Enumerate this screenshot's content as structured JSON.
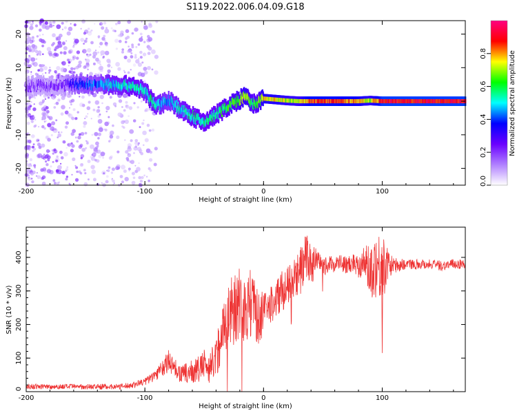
{
  "title": "S119.2022.006.04.09.G18",
  "chart_data": [
    {
      "type": "heatmap",
      "xlabel": "Height of straight line (km)",
      "ylabel": "Frequency (Hz)",
      "xlim": [
        -200,
        170
      ],
      "ylim": [
        -25,
        24
      ],
      "xticks": [
        -200,
        -100,
        0,
        100
      ],
      "yticks": [
        -20,
        -10,
        0,
        10,
        20
      ],
      "colorbar": {
        "label": "Normalized spectral amplitude",
        "range": [
          0,
          1
        ],
        "ticks": [
          0.0,
          0.2,
          0.4,
          0.6,
          0.8
        ],
        "colormap": [
          "#ffffff",
          "#b080ff",
          "#6a00ff",
          "#0000ff",
          "#00ffff",
          "#00ff00",
          "#ffff00",
          "#ff0000",
          "#ff0080"
        ]
      },
      "ridge": [
        {
          "x": -200,
          "y": 4.5,
          "amp": 0.2
        },
        {
          "x": -190,
          "y": 4.7,
          "amp": 0.2
        },
        {
          "x": -180,
          "y": 4.5,
          "amp": 0.2
        },
        {
          "x": -170,
          "y": 4.6,
          "amp": 0.2
        },
        {
          "x": -160,
          "y": 5.2,
          "amp": 0.35
        },
        {
          "x": -150,
          "y": 5.0,
          "amp": 0.4
        },
        {
          "x": -140,
          "y": 5.0,
          "amp": 0.4
        },
        {
          "x": -130,
          "y": 5.0,
          "amp": 0.5
        },
        {
          "x": -120,
          "y": 4.8,
          "amp": 0.5
        },
        {
          "x": -110,
          "y": 4.5,
          "amp": 0.55
        },
        {
          "x": -100,
          "y": 3.0,
          "amp": 0.5
        },
        {
          "x": -95,
          "y": 0.5,
          "amp": 0.55
        },
        {
          "x": -90,
          "y": -1.5,
          "amp": 0.5
        },
        {
          "x": -80,
          "y": 0.5,
          "amp": 0.45
        },
        {
          "x": -75,
          "y": -1.0,
          "amp": 0.5
        },
        {
          "x": -70,
          "y": -2.5,
          "amp": 0.5
        },
        {
          "x": -60,
          "y": -4.5,
          "amp": 0.55
        },
        {
          "x": -55,
          "y": -5.5,
          "amp": 0.55
        },
        {
          "x": -50,
          "y": -6.5,
          "amp": 0.55
        },
        {
          "x": -45,
          "y": -5.0,
          "amp": 0.55
        },
        {
          "x": -40,
          "y": -4.0,
          "amp": 0.55
        },
        {
          "x": -30,
          "y": -1.5,
          "amp": 0.6
        },
        {
          "x": -20,
          "y": 0.5,
          "amp": 0.65
        },
        {
          "x": -15,
          "y": 1.5,
          "amp": 0.7
        },
        {
          "x": -10,
          "y": -1.0,
          "amp": 0.6
        },
        {
          "x": -5,
          "y": -0.5,
          "amp": 0.6
        },
        {
          "x": 0,
          "y": 0.8,
          "amp": 0.75
        },
        {
          "x": 10,
          "y": 0.5,
          "amp": 0.75
        },
        {
          "x": 20,
          "y": 0.2,
          "amp": 0.7
        },
        {
          "x": 30,
          "y": 0.0,
          "amp": 0.7
        },
        {
          "x": 40,
          "y": 0.0,
          "amp": 0.85
        },
        {
          "x": 60,
          "y": 0.0,
          "amp": 0.85
        },
        {
          "x": 80,
          "y": 0.0,
          "amp": 0.8
        },
        {
          "x": 90,
          "y": 0.2,
          "amp": 0.7
        },
        {
          "x": 100,
          "y": 0.0,
          "amp": 0.9
        },
        {
          "x": 130,
          "y": 0.0,
          "amp": 0.9
        },
        {
          "x": 170,
          "y": 0.0,
          "amp": 0.9
        }
      ]
    },
    {
      "type": "line",
      "xlabel": "Height of straight line (km)",
      "ylabel": "SNR (10 * v/v)",
      "xlim": [
        -200,
        170
      ],
      "ylim": [
        0,
        490
      ],
      "xticks": [
        -200,
        -100,
        0,
        100
      ],
      "yticks": [
        0,
        100,
        200,
        300,
        400
      ],
      "series": [
        {
          "color": "#ee3333",
          "x": [
            -200,
            -180,
            -160,
            -140,
            -120,
            -110,
            -100,
            -95,
            -90,
            -85,
            -80,
            -75,
            -70,
            -65,
            -60,
            -55,
            -50,
            -45,
            -40,
            -35,
            -30,
            -25,
            -20,
            -15,
            -10,
            -5,
            0,
            5,
            10,
            15,
            20,
            25,
            30,
            35,
            40,
            45,
            50,
            55,
            60,
            65,
            70,
            75,
            80,
            85,
            90,
            95,
            100,
            105,
            110,
            120,
            130,
            140,
            150,
            160,
            170
          ],
          "y": [
            15,
            15,
            15,
            15,
            15,
            20,
            30,
            40,
            55,
            70,
            90,
            75,
            50,
            55,
            60,
            65,
            80,
            75,
            100,
            180,
            220,
            250,
            270,
            240,
            270,
            220,
            230,
            250,
            275,
            300,
            310,
            330,
            350,
            400,
            380,
            385,
            370,
            380,
            380,
            385,
            375,
            385,
            380,
            385,
            360,
            380,
            370,
            380,
            375,
            380,
            380,
            380,
            375,
            380,
            380
          ],
          "amplitude": [
            8,
            8,
            8,
            8,
            8,
            10,
            12,
            15,
            20,
            25,
            35,
            30,
            25,
            30,
            35,
            40,
            45,
            50,
            60,
            90,
            100,
            110,
            120,
            110,
            100,
            80,
            70,
            60,
            60,
            60,
            60,
            60,
            70,
            80,
            60,
            40,
            25,
            25,
            25,
            25,
            25,
            30,
            40,
            50,
            80,
            100,
            110,
            40,
            25,
            15,
            15,
            15,
            15,
            15,
            15
          ]
        }
      ]
    }
  ]
}
